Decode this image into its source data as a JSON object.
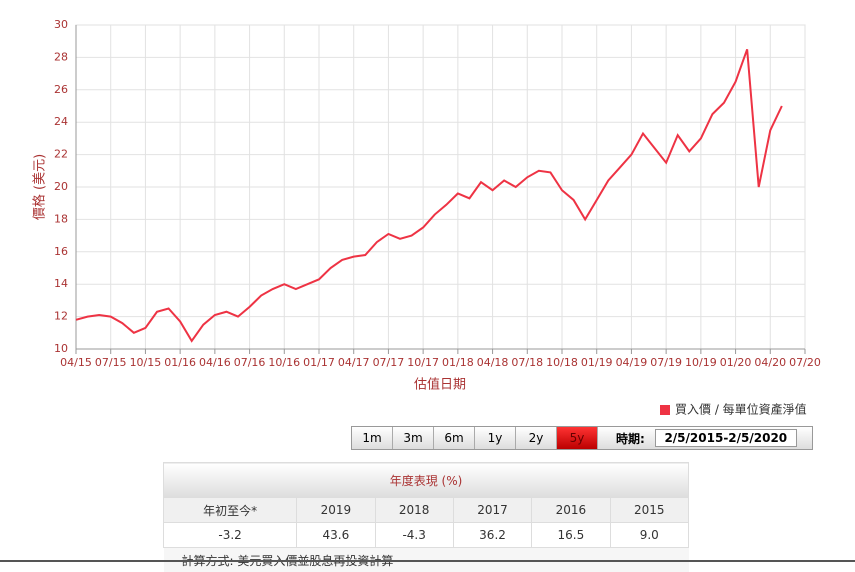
{
  "chart_data": {
    "type": "line",
    "y_label": "價格 (美元)",
    "x_label": "估值日期",
    "x": [
      "04/15",
      "05/15",
      "06/15",
      "07/15",
      "08/15",
      "09/15",
      "10/15",
      "11/15",
      "12/15",
      "01/16",
      "02/16",
      "03/16",
      "04/16",
      "05/16",
      "06/16",
      "07/16",
      "08/16",
      "09/16",
      "10/16",
      "11/16",
      "12/16",
      "01/17",
      "02/17",
      "03/17",
      "04/17",
      "05/17",
      "06/17",
      "07/17",
      "08/17",
      "09/17",
      "10/17",
      "11/17",
      "12/17",
      "01/18",
      "02/18",
      "03/18",
      "04/18",
      "05/18",
      "06/18",
      "07/18",
      "08/18",
      "09/18",
      "10/18",
      "11/18",
      "12/18",
      "01/19",
      "02/19",
      "03/19",
      "04/19",
      "05/19",
      "06/19",
      "07/19",
      "08/19",
      "09/19",
      "10/19",
      "11/19",
      "12/19",
      "01/20",
      "02/20",
      "03/20",
      "04/20",
      "05/20"
    ],
    "series": [
      {
        "name": "買入價 / 每單位資產淨值",
        "color": "#ee3344",
        "values": [
          11.8,
          12.0,
          12.1,
          12.0,
          11.6,
          11.0,
          11.3,
          12.3,
          12.5,
          11.7,
          10.5,
          11.5,
          12.1,
          12.3,
          12.0,
          12.6,
          13.3,
          13.7,
          14.0,
          13.7,
          14.0,
          14.3,
          15.0,
          15.5,
          15.7,
          15.8,
          16.6,
          17.1,
          16.8,
          17.0,
          17.5,
          18.3,
          18.9,
          19.6,
          19.3,
          20.3,
          19.8,
          20.4,
          20.0,
          20.6,
          21.0,
          20.9,
          19.8,
          19.2,
          18.0,
          19.2,
          20.4,
          21.2,
          22.0,
          23.3,
          22.4,
          21.5,
          23.2,
          22.2,
          23.0,
          24.5,
          25.2,
          26.5,
          28.5,
          20.0,
          23.5,
          25.0
        ]
      }
    ],
    "xlim": [
      "04/15",
      "07/20"
    ],
    "xticks": [
      "04/15",
      "07/15",
      "10/15",
      "01/16",
      "04/16",
      "07/16",
      "10/16",
      "01/17",
      "04/17",
      "07/17",
      "10/17",
      "01/18",
      "04/18",
      "07/18",
      "10/18",
      "01/19",
      "04/19",
      "07/19",
      "10/19",
      "01/20",
      "04/20",
      "07/20"
    ],
    "ylim": [
      10,
      30
    ],
    "yticks": [
      10,
      12,
      14,
      16,
      18,
      20,
      22,
      24,
      26,
      28,
      30
    ],
    "grid": true,
    "legend": "bottom-right"
  },
  "controls": {
    "buttons": [
      "1m",
      "3m",
      "6m",
      "1y",
      "2y",
      "5y"
    ],
    "selected": "5y",
    "period_label": "時期:",
    "period": "2/5/2015-2/5/2020"
  },
  "table": {
    "title": "年度表現 (%)",
    "header": [
      "年初至今*",
      "2019",
      "2018",
      "2017",
      "2016",
      "2015"
    ],
    "rows": [
      [
        "-3.2",
        "43.6",
        "-4.3",
        "36.2",
        "16.5",
        "9.0"
      ]
    ],
    "note": "計算方式: 美元買入價並股息再投資計算"
  }
}
